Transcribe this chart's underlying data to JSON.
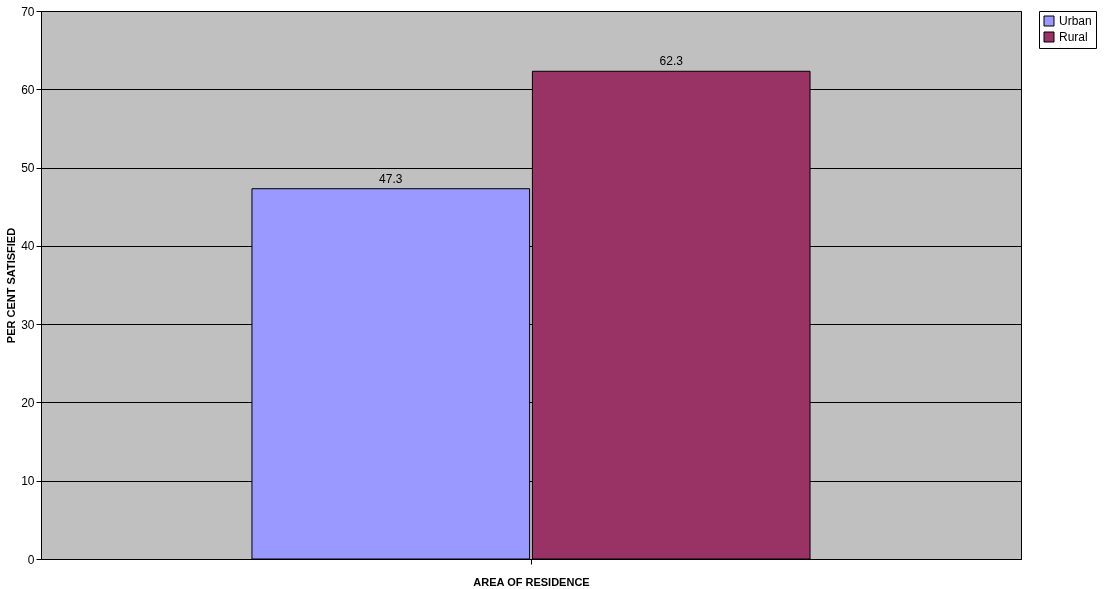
{
  "chart_data": {
    "type": "bar",
    "xlabel": "AREA OF RESIDENCE",
    "ylabel": "PER CENT SATISFIED",
    "categories": [
      null
    ],
    "series": [
      {
        "name": "Urban",
        "color": "#9999ff",
        "values": [
          47.3
        ]
      },
      {
        "name": "Rural",
        "color": "#993366",
        "values": [
          62.3
        ]
      }
    ],
    "ylim": [
      0,
      70
    ],
    "yticks": [
      0,
      10,
      20,
      30,
      40,
      50,
      60,
      70
    ],
    "grid": "y",
    "legend": "right",
    "data_labels": true
  }
}
